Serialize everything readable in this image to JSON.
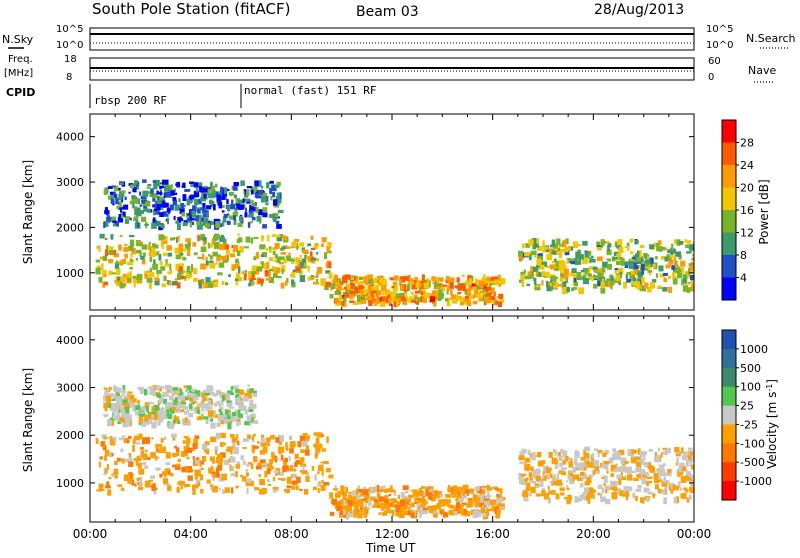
{
  "header": {
    "title": "South Pole Station (fitACF)",
    "beam": "Beam 03",
    "date": "28/Aug/2013"
  },
  "top_panels": {
    "nsky_label": "N.Sky",
    "nsearch_label": "N.Search",
    "nsky_ticks": [
      "10^5",
      "10^0"
    ],
    "nsearch_ticks": [
      "10^5",
      "10^0"
    ],
    "freq_label_1": "Freq.",
    "freq_label_2": "[MHz]",
    "freq_ticks": [
      "18",
      "8"
    ],
    "nave_label": "Nave",
    "nave_ticks": [
      "60",
      "0"
    ],
    "cpid_label": "CPID",
    "cpid_segments": [
      {
        "label": "rbsp 200 RF",
        "start_hour": 0,
        "end_hour": 6
      },
      {
        "label": "normal (fast) 151 RF",
        "start_hour": 6,
        "end_hour": 24
      }
    ]
  },
  "time_axis": {
    "label": "Time UT",
    "ticks": [
      "00:00",
      "04:00",
      "08:00",
      "12:00",
      "16:00",
      "20:00",
      "00:00"
    ]
  },
  "chart_data": [
    {
      "type": "heatmap",
      "ylabel": "Slant Range [km]",
      "yticks": [
        1000,
        2000,
        3000,
        4000
      ],
      "ylim": [
        180,
        4500
      ],
      "xlim_hours": [
        0,
        24
      ],
      "colorbar_label": "Power [dB]",
      "colorbar_ticks": [
        "28",
        "24",
        "20",
        "16",
        "12",
        "8",
        "4"
      ],
      "colorbar_colors": [
        "#ff0000",
        "#ff5a00",
        "#ff9a00",
        "#f0c800",
        "#78b428",
        "#3c9a6e",
        "#2050c8",
        "#0000ff"
      ],
      "echo_regions": [
        {
          "start_hour": 0.2,
          "end_hour": 9.5,
          "range_low_km": 700,
          "range_high_km": 1800,
          "power_db": 18
        },
        {
          "start_hour": 0.5,
          "end_hour": 7.5,
          "range_low_km": 2000,
          "range_high_km": 3000,
          "power_db": 6
        },
        {
          "start_hour": 9.5,
          "end_hour": 16.3,
          "range_low_km": 300,
          "range_high_km": 900,
          "power_db": 22
        },
        {
          "start_hour": 17,
          "end_hour": 24,
          "range_low_km": 600,
          "range_high_km": 1700,
          "power_db": 14
        }
      ]
    },
    {
      "type": "heatmap",
      "ylabel": "Slant Range [km]",
      "yticks": [
        1000,
        2000,
        3000,
        4000
      ],
      "ylim": [
        180,
        4500
      ],
      "xlim_hours": [
        0,
        24
      ],
      "colorbar_label": "Velocity [m s^-1]",
      "colorbar_ticks": [
        "1000",
        "500",
        "100",
        "25",
        "-25",
        "-100",
        "-500",
        "-1000"
      ],
      "colorbar_colors": [
        "#2050b0",
        "#30709a",
        "#3c8a6a",
        "#50c850",
        "#c8c8c8",
        "#ffa000",
        "#ff7800",
        "#ff3c00",
        "#ff0000"
      ],
      "echo_regions": [
        {
          "start_hour": 0.2,
          "end_hour": 9.5,
          "range_low_km": 800,
          "range_high_km": 2000,
          "velocity_ms": -300
        },
        {
          "start_hour": 0.5,
          "end_hour": 6.5,
          "range_low_km": 2200,
          "range_high_km": 3000,
          "velocity_ms": 0
        },
        {
          "start_hour": 9.5,
          "end_hour": 16.3,
          "range_low_km": 300,
          "range_high_km": 900,
          "velocity_ms": -300
        },
        {
          "start_hour": 17,
          "end_hour": 24,
          "range_low_km": 600,
          "range_high_km": 1700,
          "velocity_ms": -150
        }
      ]
    }
  ]
}
